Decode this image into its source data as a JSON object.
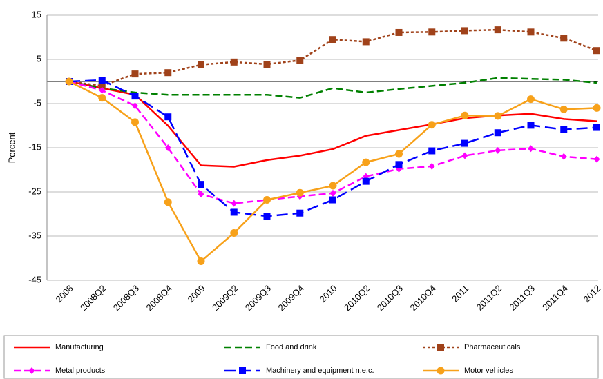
{
  "chart_data": {
    "type": "line",
    "y_label": "Percent",
    "categories": [
      "2008",
      "2008Q2",
      "2008Q3",
      "2008Q4",
      "2009",
      "2009Q2",
      "2009Q3",
      "2009Q4",
      "2010",
      "2010Q2",
      "2010Q3",
      "2010Q4",
      "2011",
      "2011Q2",
      "2011Q3",
      "2011Q4",
      "2012"
    ],
    "ylim": [
      -45,
      15
    ],
    "yticks": [
      -45,
      -35,
      -25,
      -15,
      -5,
      5,
      15
    ],
    "grid": true,
    "series": [
      {
        "name": "Manufacturing",
        "color": "#ff0000",
        "dash": "solid",
        "marker": "none",
        "values": [
          0,
          -1.5,
          -3,
          -10,
          -19,
          -19.3,
          -17.8,
          -16.8,
          -15.3,
          -12.3,
          -11,
          -9.7,
          -8.3,
          -7.7,
          -7.3,
          -8.5,
          -9
        ]
      },
      {
        "name": "Food and drink",
        "color": "#008000",
        "dash": "dashed",
        "marker": "none",
        "values": [
          0,
          -1.5,
          -2.5,
          -3,
          -3,
          -3,
          -3,
          -3.7,
          -1.5,
          -2.5,
          -1.7,
          -1,
          -0.3,
          0.8,
          0.6,
          0.4,
          -0.3
        ]
      },
      {
        "name": "Pharmaceuticals",
        "color": "#a0421a",
        "dash": "dotted",
        "marker": "square",
        "values": [
          0,
          -1,
          1.7,
          2,
          3.8,
          4.4,
          3.9,
          4.8,
          9.5,
          9,
          11.1,
          11.2,
          11.5,
          11.7,
          11.2,
          9.8,
          7
        ]
      },
      {
        "name": "Metal products",
        "color": "#ff00ff",
        "dash": "dashed",
        "marker": "diamond",
        "values": [
          0,
          -2,
          -5.5,
          -15,
          -25.5,
          -27.6,
          -26.8,
          -26,
          -25.3,
          -21.5,
          -19.8,
          -19.2,
          -16.8,
          -15.6,
          -15.2,
          -17,
          -17.6
        ]
      },
      {
        "name": "Machinery and equipment n.e.c.",
        "color": "#0000ff",
        "dash": "longdash",
        "marker": "square",
        "values": [
          0,
          0.3,
          -3.3,
          -8,
          -23.3,
          -29.6,
          -30.5,
          -29.8,
          -26.8,
          -22.6,
          -18.8,
          -15.7,
          -14,
          -11.6,
          -9.9,
          -10.9,
          -10.4
        ]
      },
      {
        "name": "Motor vehicles",
        "color": "#f7a11a",
        "dash": "solid",
        "marker": "circle",
        "values": [
          0,
          -3.7,
          -9.2,
          -27.3,
          -40.7,
          -34.3,
          -26.8,
          -25.2,
          -23.6,
          -18.3,
          -16.4,
          -9.8,
          -7.7,
          -7.8,
          -4,
          -6.3,
          -6
        ]
      }
    ]
  }
}
